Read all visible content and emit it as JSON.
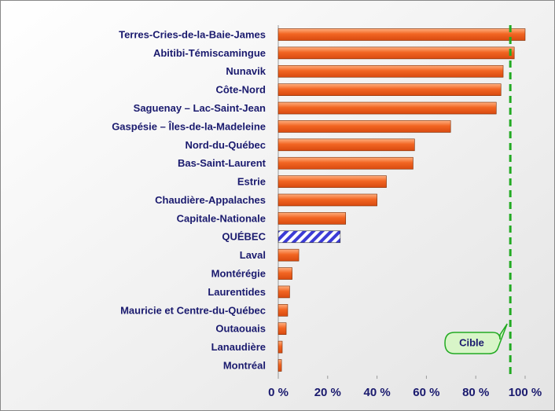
{
  "chart_data": {
    "type": "bar",
    "orientation": "horizontal",
    "categories": [
      "Terres-Cries-de-la-Baie-James",
      "Abitibi-Témiscamingue",
      "Nunavik",
      "Côte-Nord",
      "Saguenay – Lac-Saint-Jean",
      "Gaspésie – Îles-de-la-Madeleine",
      "Nord-du-Québec",
      "Bas-Saint-Laurent",
      "Estrie",
      "Chaudière-Appalaches",
      "Capitale-Nationale",
      "QUÉBEC",
      "Laval",
      "Montérégie",
      "Laurentides",
      "Mauricie et Centre-du-Québec",
      "Outaouais",
      "Lanaudière",
      "Montréal"
    ],
    "values": [
      100,
      95.6,
      91.1,
      90.2,
      88.3,
      69.8,
      55.2,
      54.6,
      43.8,
      40,
      27.3,
      25.1,
      8.3,
      5.6,
      4.6,
      3.8,
      3.2,
      1.6,
      1.3
    ],
    "color": "#f26522",
    "hatched_category": "QUÉBEC",
    "hatch_color": "#3b3bd6",
    "xlim": [
      0,
      100
    ],
    "xticks": [
      {
        "value": 0,
        "label": "0 %"
      },
      {
        "value": 20,
        "label": "20 %"
      },
      {
        "value": 40,
        "label": "40 %"
      },
      {
        "value": 60,
        "label": "60 %"
      },
      {
        "value": 80,
        "label": "80 %"
      },
      {
        "value": 100,
        "label": "100 %"
      }
    ],
    "target": {
      "label": "Cible",
      "value": 94,
      "color": "#22aa22"
    }
  }
}
